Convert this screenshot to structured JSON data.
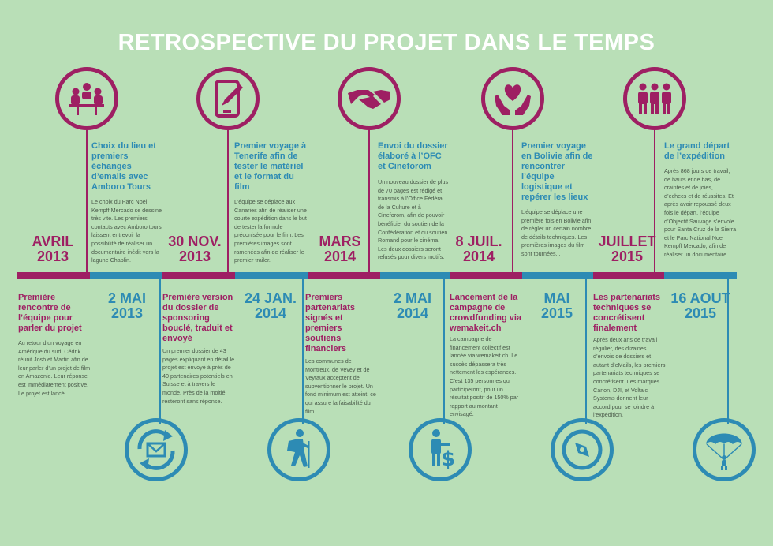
{
  "title": "RETROSPECTIVE DU PROJET DANS LE TEMPS",
  "colors": {
    "magenta": "#9e1f63",
    "blue": "#2d8bb4",
    "background": "#b9dfb7"
  },
  "top_events": [
    {
      "icon": "meeting-icon",
      "date_line1": "AVRIL",
      "date_line2": "2013",
      "heading": "Choix du lieu et premiers échanges d’emails avec Amboro Tours",
      "text": "Le choix du Parc Noel Kempff Mercado se dessine très vite. Les premiers contacts avec Amboro tours laissent entrevoir la possibilité de réaliser un documentaire inédit vers la lagune Chaplin."
    },
    {
      "icon": "tablet-pen-icon",
      "date_line1": "30 NOV.",
      "date_line2": "2013",
      "heading": "Premier voyage à Tenerife afin de tester le matériel et le format du film",
      "text": "L’équipe se déplace aux Canaries afin de réaliser une courte expédition dans le but de tester la formule préconisée pour le film. Les premières images sont ramenées afin de réaliser le premier trailer."
    },
    {
      "icon": "handshake-icon",
      "date_line1": "MARS",
      "date_line2": "2014",
      "heading": "Envoi du dossier élaboré à l’OFC et Cineforom",
      "text": "Un nouveau dossier de plus de 70 pages est rédigé et transmis à l’Office Fédéral de la Culture et à Cineforom, afin de pouvoir bénéficier du soutien de la Confédération et du soutien Romand pour le cinéma. Les deux dossiers seront refusés pour divers motifs."
    },
    {
      "icon": "heart-hands-icon",
      "date_line1": "8 JUIL.",
      "date_line2": "2014",
      "heading": "Premier voyage en Bolivie afin de rencontrer l’équipe logistique et repérer les lieux",
      "text": "L’équipe se déplace une première fois en Bolivie afin de régler un certain nombre de détails techniques. Les premières images du film sont tournées..."
    },
    {
      "icon": "people-icon",
      "date_line1": "JUILLET",
      "date_line2": "2015",
      "heading": "Le grand départ de l’expédition",
      "text": "Après 868 jours de travail, de hauts et de bas, de craintes et de joies, d’echecs et de réussites. Et après avoir repoussé deux fois le départ, l’équipe d’Objectif Sauvage s’envole pour Santa Cruz de la Sierra et le Parc National Noel Kempff Mercado, afin de réaliser un documentaire."
    }
  ],
  "bottom_events": [
    {
      "icon": "email-exchange-icon",
      "date_line1": "2 MAI",
      "date_line2": "2013",
      "heading": "Première rencontre de l’équipe pour parler du projet",
      "text": "Au retour d’un voyage en Amérique du sud, Cédrik réunit Josh et Martin afin de leur parler d’un projet de film en Amazonie. Leur réponse est immédiatement positive. Le projet est lancé."
    },
    {
      "icon": "hiker-icon",
      "date_line1": "24 JAN.",
      "date_line2": "2014",
      "heading": "Première version du dossier de sponsoring bouclé, traduit et envoyé",
      "text": "Un premier dossier de 43 pages expliquant en détail le projet est envoyé à près de 40 partenaires potentiels en Suisse et à travers le monde. Près de la moitié resteront sans réponse."
    },
    {
      "icon": "dollar-sign-icon",
      "date_line1": "2 MAI",
      "date_line2": "2014",
      "heading": "Premiers partenariats signés et premiers soutiens financiers",
      "text": "Les communes de Montreux, de Vevey et de Veytaux acceptent de subventionner le projet. Un fond minimum est atteint, ce qui assure la faisabilité du film."
    },
    {
      "icon": "compass-icon",
      "date_line1": "MAI",
      "date_line2": "2015",
      "heading": "Lancement de la campagne de crowdfunding via wemakeit.ch",
      "text": "La campagne de financement collectif est lancée via wemakeit.ch. Le succès dépassera très nettement les espérances. C’est 135 personnes qui participeront, pour un résultat positif de 150% par rapport au montant envisagé."
    },
    {
      "icon": "parachute-icon",
      "date_line1": "16 AOUT",
      "date_line2": "2015",
      "heading": "Les partenariats techniques se concrétisent finalement",
      "text": "Après deux ans de travail régulier, des dizaines d’envois de dossiers et autant d’eMails, les premiers partenariats techniques se concrétisent. Les marques Canon, DJI, et Voltaic Systems donnent leur accord pour se joindre à l’expédition."
    }
  ]
}
